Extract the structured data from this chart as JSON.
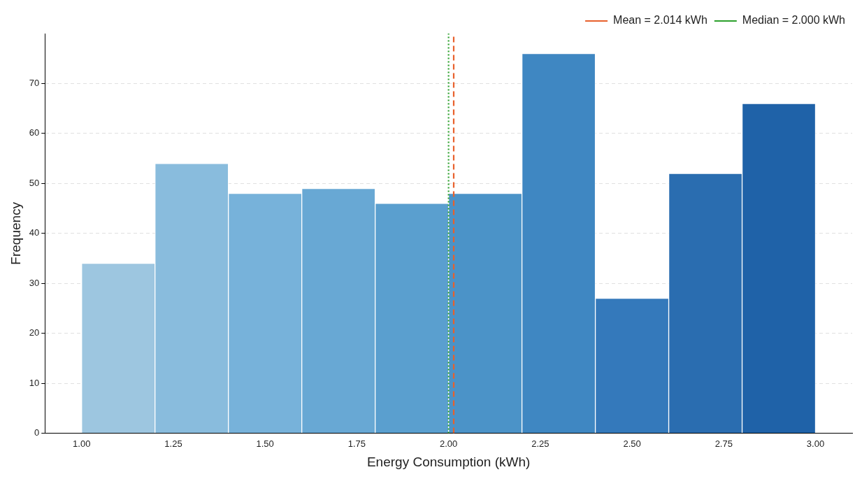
{
  "chart_data": {
    "type": "histogram",
    "xlabel": "Energy Consumption (kWh)",
    "ylabel": "Frequency",
    "bins": [
      1.0,
      1.2,
      1.4,
      1.6,
      1.8,
      2.0,
      2.2,
      2.4,
      2.6,
      2.8,
      3.0
    ],
    "values": [
      34,
      54,
      48,
      49,
      46,
      48,
      76,
      27,
      52,
      66
    ],
    "colors": [
      "#9dc6e0",
      "#89bcdd",
      "#77b2da",
      "#68a8d4",
      "#5a9fcf",
      "#4b93c8",
      "#3f87c2",
      "#3479bb",
      "#2a6db0",
      "#1f62a8"
    ],
    "xlim": [
      0.9,
      3.1
    ],
    "ylim": [
      0,
      80
    ],
    "xticks": [
      {
        "value": 1.0,
        "label": "1.00"
      },
      {
        "value": 1.25,
        "label": "1.25"
      },
      {
        "value": 1.5,
        "label": "1.50"
      },
      {
        "value": 1.75,
        "label": "1.75"
      },
      {
        "value": 2.0,
        "label": "2.00"
      },
      {
        "value": 2.25,
        "label": "2.25"
      },
      {
        "value": 2.5,
        "label": "2.50"
      },
      {
        "value": 2.75,
        "label": "2.75"
      },
      {
        "value": 3.0,
        "label": "3.00"
      }
    ],
    "yticks": [
      0,
      10,
      20,
      30,
      40,
      50,
      60,
      70
    ],
    "ref_lines": [
      {
        "axis": "x",
        "value": 2.014,
        "label": "Mean = 2.014 kWh",
        "color": "#e8602c",
        "line_style": "dashed"
      },
      {
        "axis": "x",
        "value": 2.0,
        "label": "Median = 2.000 kWh",
        "color": "#2ca02c",
        "line_style": "dotted"
      }
    ],
    "grid": "y",
    "legend": "top right"
  }
}
